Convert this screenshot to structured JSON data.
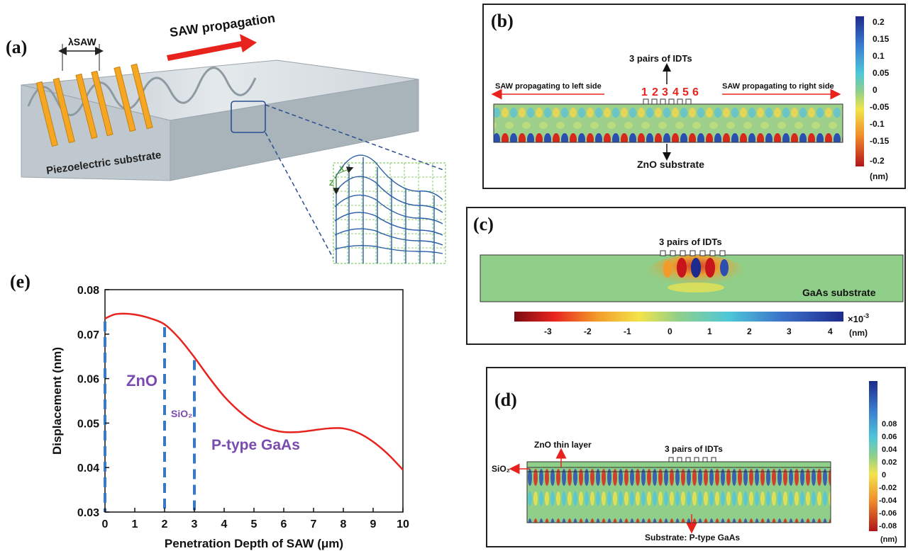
{
  "panel_a": {
    "label": "(a)",
    "lambda_label": "λSAW",
    "propagation_label": "SAW propagation",
    "substrate_label": "Piezoelectric  substrate",
    "axis_x": "X",
    "axis_z": "Z"
  },
  "panel_b": {
    "label": "(b)",
    "idt_label": "3 pairs of IDTs",
    "idt_numbers": [
      "1",
      "2",
      "3",
      "4",
      "5",
      "6"
    ],
    "left_label": "SAW propagating to left side",
    "right_label": "SAW propagating to right side",
    "substrate_label": "ZnO substrate",
    "colorbar_ticks": [
      "0.2",
      "0.15",
      "0.1",
      "0.05",
      "0",
      "-0.05",
      "-0.1",
      "-0.15",
      "-0.2"
    ],
    "unit": "(nm)"
  },
  "panel_c": {
    "label": "(c)",
    "idt_label": "3 pairs of IDTs",
    "substrate_label": "GaAs substrate",
    "colorbar_ticks": [
      "-3",
      "-2",
      "-1",
      "0",
      "1",
      "2",
      "3",
      "4"
    ],
    "scale": "×10",
    "scale_exp": "-3",
    "unit": "(nm)"
  },
  "panel_d": {
    "label": "(d)",
    "zno_label": "ZnO thin layer",
    "sio2_label": "SiO₂",
    "idt_label": "3 pairs of IDTs",
    "substrate_label": "Substrate: P-type GaAs",
    "colorbar_ticks": [
      "0.08",
      "0.06",
      "0.04",
      "0.02",
      "0",
      "-0.02",
      "-0.04",
      "-0.06",
      "-0.08"
    ],
    "unit": "(nm)"
  },
  "panel_e": {
    "label": "(e)",
    "region_zno": "ZnO",
    "region_sio2": "SiO₂",
    "region_gaas": "P-type GaAs"
  },
  "chart_data": {
    "type": "line",
    "title": "",
    "xlabel": "Penetration Depth of SAW (μm)",
    "ylabel": "Displacement (nm)",
    "xlim": [
      0,
      10
    ],
    "ylim": [
      0.03,
      0.08
    ],
    "xticks": [
      "0",
      "1",
      "2",
      "3",
      "4",
      "5",
      "6",
      "7",
      "8",
      "9",
      "10"
    ],
    "yticks": [
      "0.03",
      "0.04",
      "0.05",
      "0.06",
      "0.07",
      "0.08"
    ],
    "series": [
      {
        "color": "#e8231e",
        "x": [
          0,
          0.3,
          0.6,
          1.0,
          1.5,
          2.0,
          2.5,
          3.0,
          3.5,
          4.0,
          4.5,
          5.0,
          5.5,
          6.0,
          6.5,
          7.0,
          7.5,
          8.0,
          8.5,
          9.0,
          9.5,
          10.0
        ],
        "y": [
          0.0735,
          0.0744,
          0.0746,
          0.0744,
          0.0736,
          0.0722,
          0.069,
          0.0648,
          0.0602,
          0.056,
          0.0527,
          0.0502,
          0.0487,
          0.048,
          0.048,
          0.0484,
          0.0488,
          0.0488,
          0.0478,
          0.0458,
          0.043,
          0.0395
        ]
      }
    ],
    "dividers_x": [
      0,
      2,
      3
    ],
    "divider_color": "#3a78c8",
    "grid": false
  },
  "colors": {
    "curve": "#e8231e",
    "divider": "#3a78c8",
    "region_text": "#7a4bb0",
    "arrow_red": "#e8231e",
    "idt_orange": "#f5a623",
    "substrate_grey": "#c9d2d8"
  }
}
